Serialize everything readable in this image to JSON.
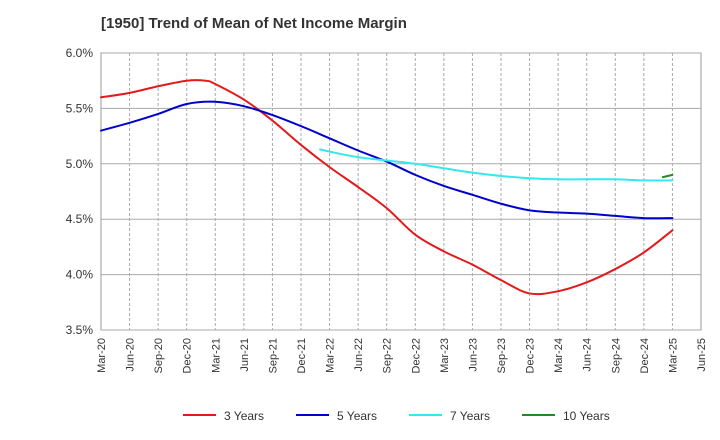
{
  "chart_data": {
    "type": "line",
    "title": "[1950]  Trend of Mean of Net Income Margin",
    "xlabel": "",
    "ylabel": "",
    "x_ticks": [
      "Mar-20",
      "Jun-20",
      "Sep-20",
      "Dec-20",
      "Mar-21",
      "Jun-21",
      "Sep-21",
      "Dec-21",
      "Mar-22",
      "Jun-22",
      "Sep-22",
      "Dec-22",
      "Mar-23",
      "Jun-23",
      "Sep-23",
      "Dec-23",
      "Mar-24",
      "Jun-24",
      "Sep-24",
      "Dec-24",
      "Mar-25",
      "Jun-25"
    ],
    "y_ticks": [
      "3.5%",
      "4.0%",
      "4.5%",
      "5.0%",
      "5.5%",
      "6.0%"
    ],
    "ylim": [
      3.5,
      6.0
    ],
    "grid": "dashed vertical lines at x ticks, horizontal lines at y ticks",
    "legend_position": "bottom",
    "series": [
      {
        "name": "3 Years",
        "color": "#e31a1c",
        "x": [
          "Mar-20",
          "Jun-20",
          "Sep-20",
          "Dec-20",
          "Feb-21",
          "Mar-21",
          "Jun-21",
          "Sep-21",
          "Dec-21",
          "Mar-22",
          "Jun-22",
          "Sep-22",
          "Dec-22",
          "Mar-23",
          "Jun-23",
          "Sep-23",
          "Dec-23",
          "Mar-24",
          "Jun-24",
          "Sep-24",
          "Dec-24",
          "Mar-25"
        ],
        "y": [
          5.6,
          5.64,
          5.7,
          5.75,
          5.75,
          5.72,
          5.58,
          5.39,
          5.17,
          4.97,
          4.79,
          4.6,
          4.36,
          4.21,
          4.09,
          3.95,
          3.83,
          3.85,
          3.93,
          4.05,
          4.2,
          4.4
        ]
      },
      {
        "name": "5 Years",
        "color": "#0000cc",
        "x": [
          "Mar-20",
          "Jun-20",
          "Sep-20",
          "Dec-20",
          "Mar-21",
          "Jun-21",
          "Sep-21",
          "Dec-21",
          "Mar-22",
          "Jun-22",
          "Sep-22",
          "Dec-22",
          "Mar-23",
          "Jun-23",
          "Sep-23",
          "Dec-23",
          "Mar-24",
          "Jun-24",
          "Sep-24",
          "Dec-24",
          "Mar-25"
        ],
        "y": [
          5.3,
          5.37,
          5.45,
          5.54,
          5.56,
          5.52,
          5.44,
          5.34,
          5.23,
          5.12,
          5.02,
          4.9,
          4.8,
          4.72,
          4.64,
          4.58,
          4.56,
          4.55,
          4.53,
          4.51,
          4.51
        ]
      },
      {
        "name": "7 Years",
        "color": "#33e8ee",
        "x": [
          "Feb-22",
          "Mar-22",
          "Jun-22",
          "Sep-22",
          "Dec-22",
          "Mar-23",
          "Jun-23",
          "Sep-23",
          "Dec-23",
          "Mar-24",
          "Jun-24",
          "Sep-24",
          "Dec-24",
          "Mar-25"
        ],
        "y": [
          5.13,
          5.11,
          5.06,
          5.03,
          5.0,
          4.96,
          4.92,
          4.89,
          4.87,
          4.86,
          4.86,
          4.86,
          4.85,
          4.85
        ]
      },
      {
        "name": "10 Years",
        "color": "#228b22",
        "x": [
          "Feb-25",
          "Mar-25"
        ],
        "y": [
          4.88,
          4.9
        ]
      }
    ]
  }
}
